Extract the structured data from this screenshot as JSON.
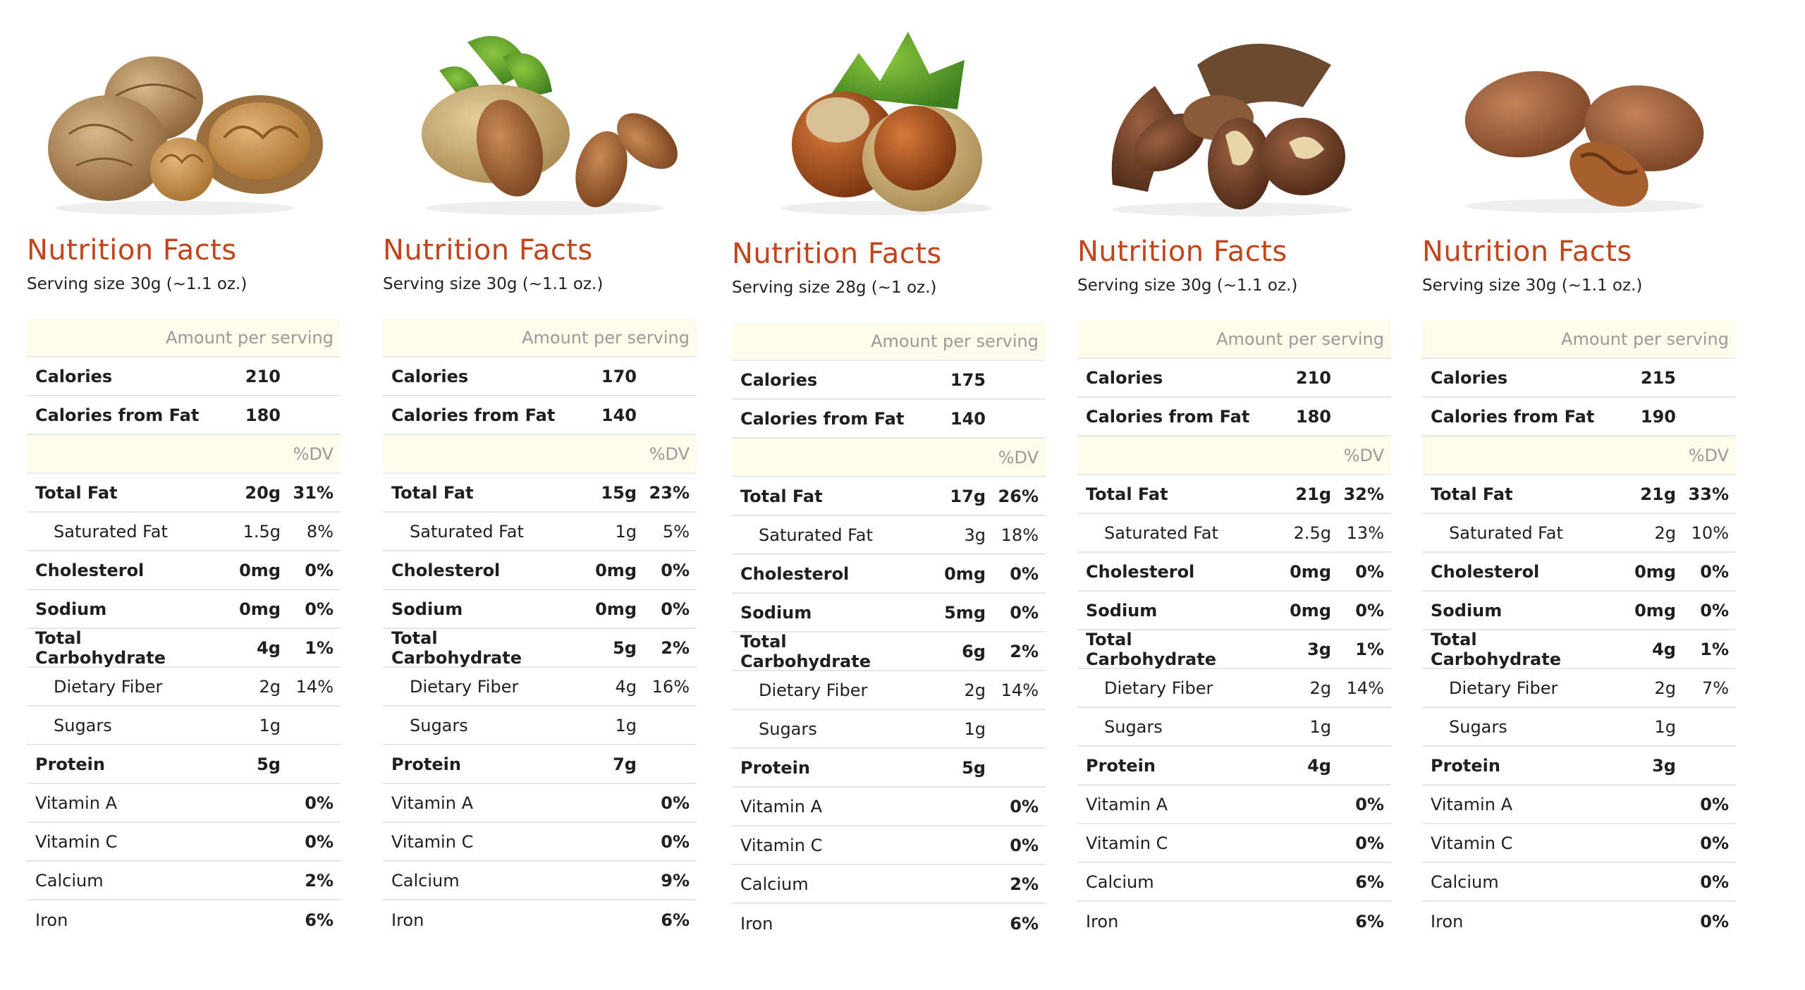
{
  "labels": {
    "title": "Nutrition Facts",
    "amount_per_serving": "Amount per serving",
    "dv_header": "%DV",
    "calories": "Calories",
    "calories_from_fat": "Calories from Fat",
    "total_fat": "Total Fat",
    "saturated_fat": "Saturated Fat",
    "cholesterol": "Cholesterol",
    "sodium": "Sodium",
    "total_carbohydrate": "Total Carbohydrate",
    "dietary_fiber": "Dietary Fiber",
    "sugars": "Sugars",
    "protein": "Protein",
    "vitamin_a": "Vitamin A",
    "vitamin_c": "Vitamin C",
    "calcium": "Calcium",
    "iron": "Iron"
  },
  "nuts": [
    {
      "image": "walnut-image",
      "serving": "Serving size 30g (~1.1 oz.)",
      "calories": "210",
      "calories_from_fat": "180",
      "total_fat": "20g",
      "total_fat_dv": "31%",
      "saturated_fat": "1.5g",
      "saturated_fat_dv": "8%",
      "cholesterol": "0mg",
      "cholesterol_dv": "0%",
      "sodium": "0mg",
      "sodium_dv": "0%",
      "carb": "4g",
      "carb_dv": "1%",
      "fiber": "2g",
      "fiber_dv": "14%",
      "sugars": "1g",
      "protein": "5g",
      "vitamin_a": "0%",
      "vitamin_c": "0%",
      "calcium": "2%",
      "iron": "6%"
    },
    {
      "image": "almond-image",
      "serving": "Serving size 30g (~1.1 oz.)",
      "calories": "170",
      "calories_from_fat": "140",
      "total_fat": "15g",
      "total_fat_dv": "23%",
      "saturated_fat": "1g",
      "saturated_fat_dv": "5%",
      "cholesterol": "0mg",
      "cholesterol_dv": "0%",
      "sodium": "0mg",
      "sodium_dv": "0%",
      "carb": "5g",
      "carb_dv": "2%",
      "fiber": "4g",
      "fiber_dv": "16%",
      "sugars": "1g",
      "protein": "7g",
      "vitamin_a": "0%",
      "vitamin_c": "0%",
      "calcium": "9%",
      "iron": "6%"
    },
    {
      "image": "hazelnut-image",
      "serving": "Serving size 28g (~1 oz.)",
      "calories": "175",
      "calories_from_fat": "140",
      "total_fat": "17g",
      "total_fat_dv": "26%",
      "saturated_fat": "3g",
      "saturated_fat_dv": "18%",
      "cholesterol": "0mg",
      "cholesterol_dv": "0%",
      "sodium": "5mg",
      "sodium_dv": "0%",
      "carb": "6g",
      "carb_dv": "2%",
      "fiber": "2g",
      "fiber_dv": "14%",
      "sugars": "1g",
      "protein": "5g",
      "vitamin_a": "0%",
      "vitamin_c": "0%",
      "calcium": "2%",
      "iron": "6%"
    },
    {
      "image": "brazil-nut-image",
      "serving": "Serving size 30g (~1.1 oz.)",
      "calories": "210",
      "calories_from_fat": "180",
      "total_fat": "21g",
      "total_fat_dv": "32%",
      "saturated_fat": "2.5g",
      "saturated_fat_dv": "13%",
      "cholesterol": "0mg",
      "cholesterol_dv": "0%",
      "sodium": "0mg",
      "sodium_dv": "0%",
      "carb": "3g",
      "carb_dv": "1%",
      "fiber": "2g",
      "fiber_dv": "14%",
      "sugars": "1g",
      "protein": "4g",
      "vitamin_a": "0%",
      "vitamin_c": "0%",
      "calcium": "6%",
      "iron": "6%"
    },
    {
      "image": "pecan-image",
      "serving": "Serving size 30g (~1.1 oz.)",
      "calories": "215",
      "calories_from_fat": "190",
      "total_fat": "21g",
      "total_fat_dv": "33%",
      "saturated_fat": "2g",
      "saturated_fat_dv": "10%",
      "cholesterol": "0mg",
      "cholesterol_dv": "0%",
      "sodium": "0mg",
      "sodium_dv": "0%",
      "carb": "4g",
      "carb_dv": "1%",
      "fiber": "2g",
      "fiber_dv": "7%",
      "sugars": "1g",
      "protein": "3g",
      "vitamin_a": "0%",
      "vitamin_c": "0%",
      "calcium": "0%",
      "iron": "0%"
    }
  ]
}
